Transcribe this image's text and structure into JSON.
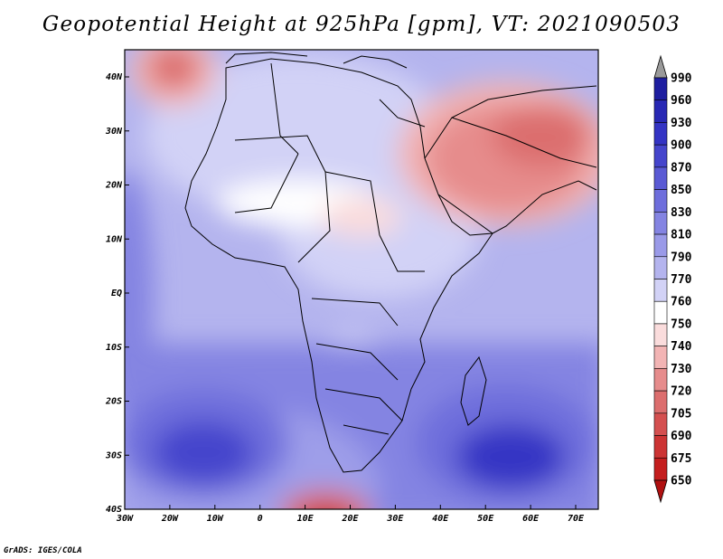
{
  "title": "Geopotential Height at 925hPa [gpm], VT: 2021090503",
  "map": {
    "lon_labels": [
      "30W",
      "20W",
      "10W",
      "0",
      "10E",
      "20E",
      "30E",
      "40E",
      "50E",
      "60E",
      "70E"
    ],
    "lat_labels": [
      "40N",
      "30N",
      "20N",
      "10N",
      "EQ",
      "10S",
      "20S",
      "30S",
      "40S"
    ]
  },
  "colorbar": {
    "levels": [
      "990",
      "960",
      "930",
      "900",
      "870",
      "850",
      "830",
      "810",
      "790",
      "770",
      "760",
      "750",
      "740",
      "730",
      "720",
      "705",
      "690",
      "675",
      "650"
    ],
    "colors": [
      "#9a9a9a",
      "#1e1ea0",
      "#2828b4",
      "#3434c4",
      "#4545cc",
      "#5a5ad4",
      "#6e6edc",
      "#8484e2",
      "#9a9ae8",
      "#b4b4ee",
      "#d2d2f6",
      "#ffffff",
      "#fadcdc",
      "#f2b4b4",
      "#e68c8c",
      "#dc6e6e",
      "#d45050",
      "#cc3434",
      "#c41e1e",
      "#b01010"
    ]
  },
  "credit": "GrADS: IGES/COLA"
}
